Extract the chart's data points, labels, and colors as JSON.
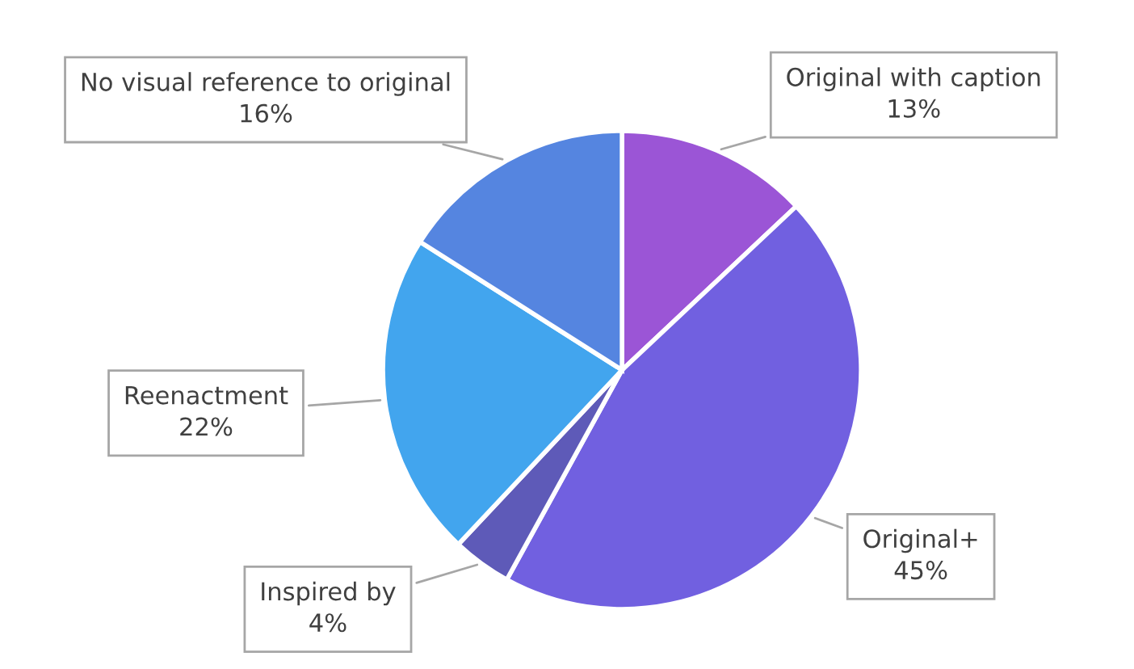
{
  "chart_data": {
    "type": "pie",
    "categories": [
      "Original with caption",
      "Original+",
      "Inspired by",
      "Reenactment",
      "No visual reference to original"
    ],
    "values": [
      13,
      45,
      4,
      22,
      16
    ],
    "value_labels": [
      "13%",
      "45%",
      "4%",
      "22%",
      "16%"
    ],
    "colors": [
      "#9b55d6",
      "#7160e0",
      "#5e5ab8",
      "#42a5ee",
      "#5585e0"
    ],
    "legend": false
  }
}
